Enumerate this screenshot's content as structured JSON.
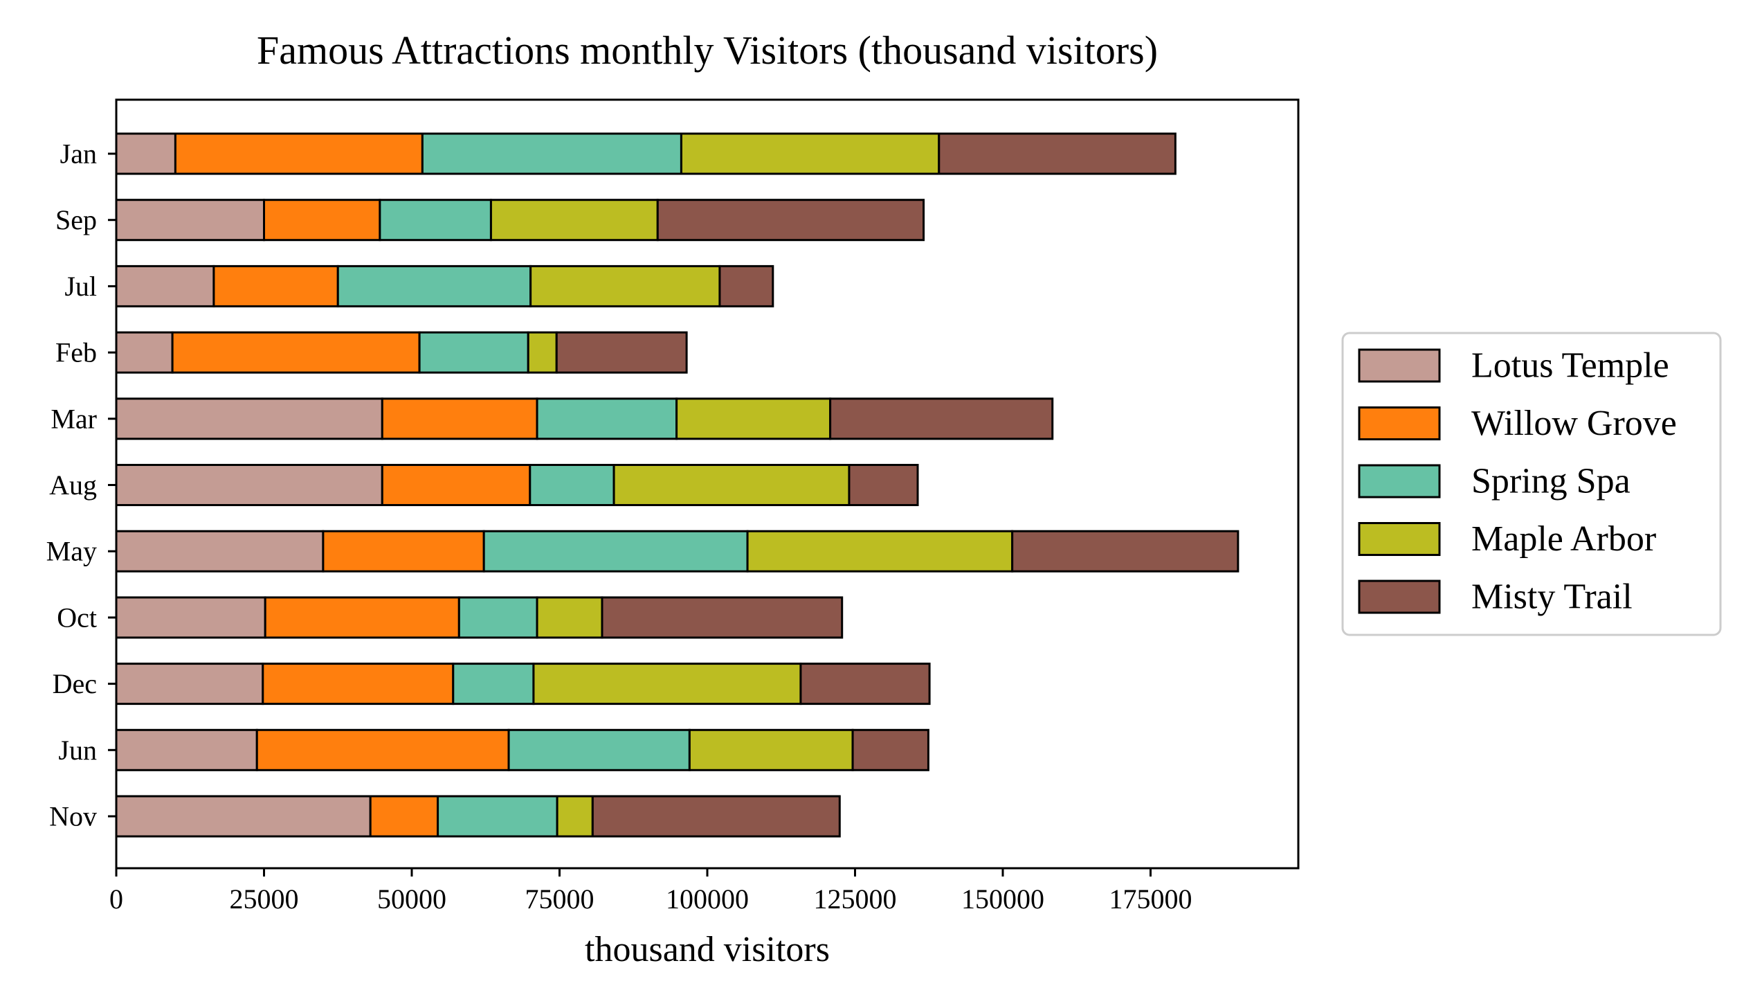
{
  "chart_data": {
    "type": "bar",
    "orientation": "horizontal",
    "stacked": true,
    "title": "Famous Attractions monthly Visitors (thousand visitors)",
    "xlabel": "thousand visitors",
    "ylabel": "",
    "xlim": [
      0,
      200000
    ],
    "xticks": [
      0,
      25000,
      50000,
      75000,
      100000,
      125000,
      150000,
      175000
    ],
    "grid": false,
    "legend_position": "right",
    "categories": [
      "Jan",
      "Sep",
      "Jul",
      "Feb",
      "Mar",
      "Aug",
      "May",
      "Oct",
      "Dec",
      "Jun",
      "Nov"
    ],
    "series": [
      {
        "name": "Lotus Temple",
        "color": "#c49c94",
        "values": [
          10000,
          25000,
          16500,
          9500,
          45000,
          45000,
          35000,
          25200,
          24800,
          23800,
          43000
        ]
      },
      {
        "name": "Willow Grove",
        "color": "#ff7f0e",
        "values": [
          41800,
          19600,
          21000,
          41800,
          26200,
          25000,
          27200,
          32800,
          32200,
          42600,
          11400
        ]
      },
      {
        "name": "Spring Spa",
        "color": "#66c2a5",
        "values": [
          43800,
          18800,
          32600,
          18400,
          23600,
          14200,
          44600,
          13200,
          13600,
          30600,
          20200
        ]
      },
      {
        "name": "Maple Arbor",
        "color": "#bcbd22",
        "values": [
          43600,
          28200,
          32000,
          4800,
          26000,
          39800,
          44800,
          11000,
          45200,
          27600,
          6000
        ]
      },
      {
        "name": "Misty Trail",
        "color": "#8c564b",
        "values": [
          40000,
          45000,
          9000,
          22000,
          37600,
          11600,
          38200,
          40600,
          21800,
          12800,
          41800
        ]
      }
    ]
  }
}
